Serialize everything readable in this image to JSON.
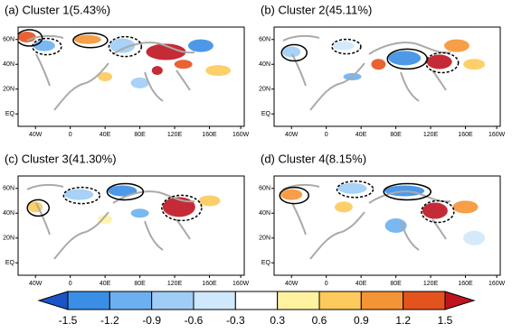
{
  "panels": [
    {
      "title": "(a) Cluster 1(5.43%)"
    },
    {
      "title": "(b) Cluster 2(45.11%)"
    },
    {
      "title": "(c) Cluster 3(41.30%)"
    },
    {
      "title": "(d) Cluster 4(8.15%)"
    }
  ],
  "xticks": [
    "40W",
    "0",
    "40E",
    "80E",
    "120E",
    "160E",
    "160W"
  ],
  "yticks": [
    "60N",
    "40N",
    "20N",
    "EQ"
  ],
  "colorbar": {
    "levels": [
      -1.5,
      -1.2,
      -0.9,
      -0.6,
      -0.3,
      0.3,
      0.6,
      0.9,
      1.2,
      1.5
    ],
    "colors": [
      "#1a55c8",
      "#3a8ee6",
      "#6cb0f0",
      "#9fcdf6",
      "#cfe8fb",
      "#ffffff",
      "#fff3a0",
      "#fcca5a",
      "#f59434",
      "#e4521e",
      "#bf1420"
    ]
  }
}
